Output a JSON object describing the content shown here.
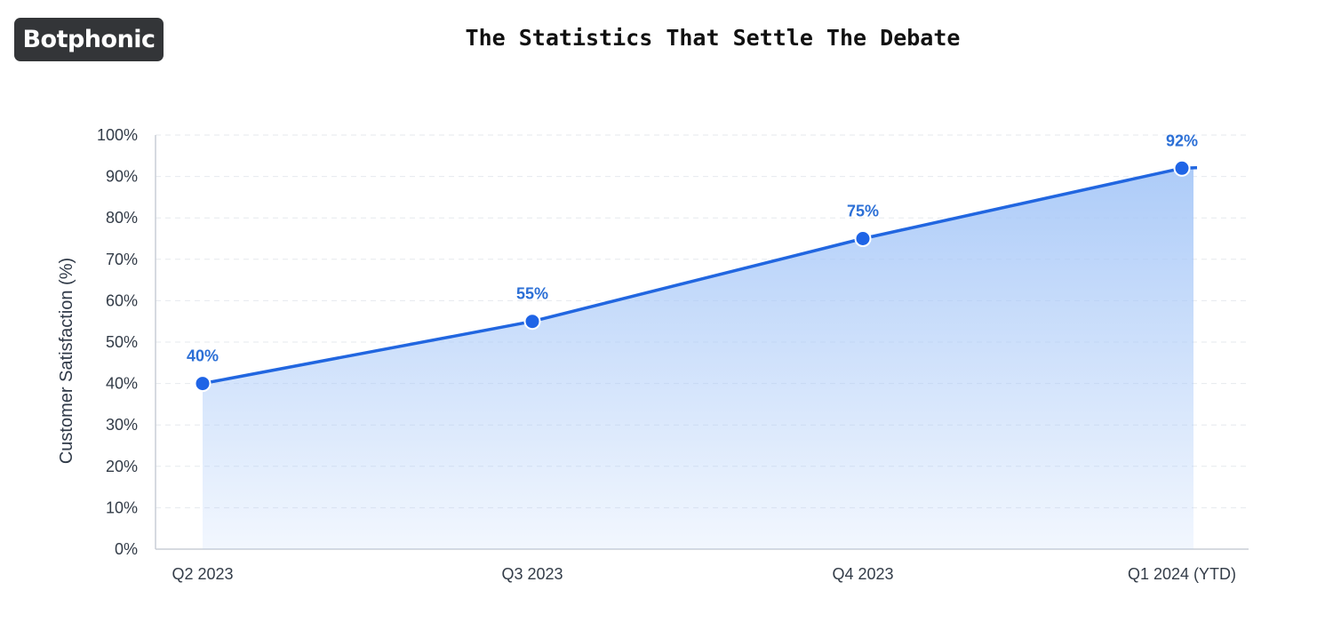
{
  "brand": {
    "name": "Botphonic"
  },
  "header": {
    "title": "The Statistics That Settle The Debate"
  },
  "chart_data": {
    "type": "area",
    "title": "The Statistics That Settle The Debate",
    "xlabel": "",
    "ylabel": "Customer Satisfaction (%)",
    "categories": [
      "Q2 2023",
      "Q3 2023",
      "Q4 2023",
      "Q1 2024 (YTD)"
    ],
    "series": [
      {
        "values": [
          40,
          55,
          75,
          92
        ],
        "labels": [
          "40%",
          "55%",
          "75%",
          "92%"
        ]
      }
    ],
    "ylim": [
      0,
      100
    ],
    "yticks": [
      "0%",
      "10%",
      "20%",
      "30%",
      "40%",
      "50%",
      "60%",
      "70%",
      "80%",
      "90%",
      "100%"
    ],
    "grid": true,
    "colors": {
      "line": "#2166e0",
      "fill": "#a9c9f8",
      "marker": "#1f64e6",
      "label": "#2b6fd6"
    }
  }
}
